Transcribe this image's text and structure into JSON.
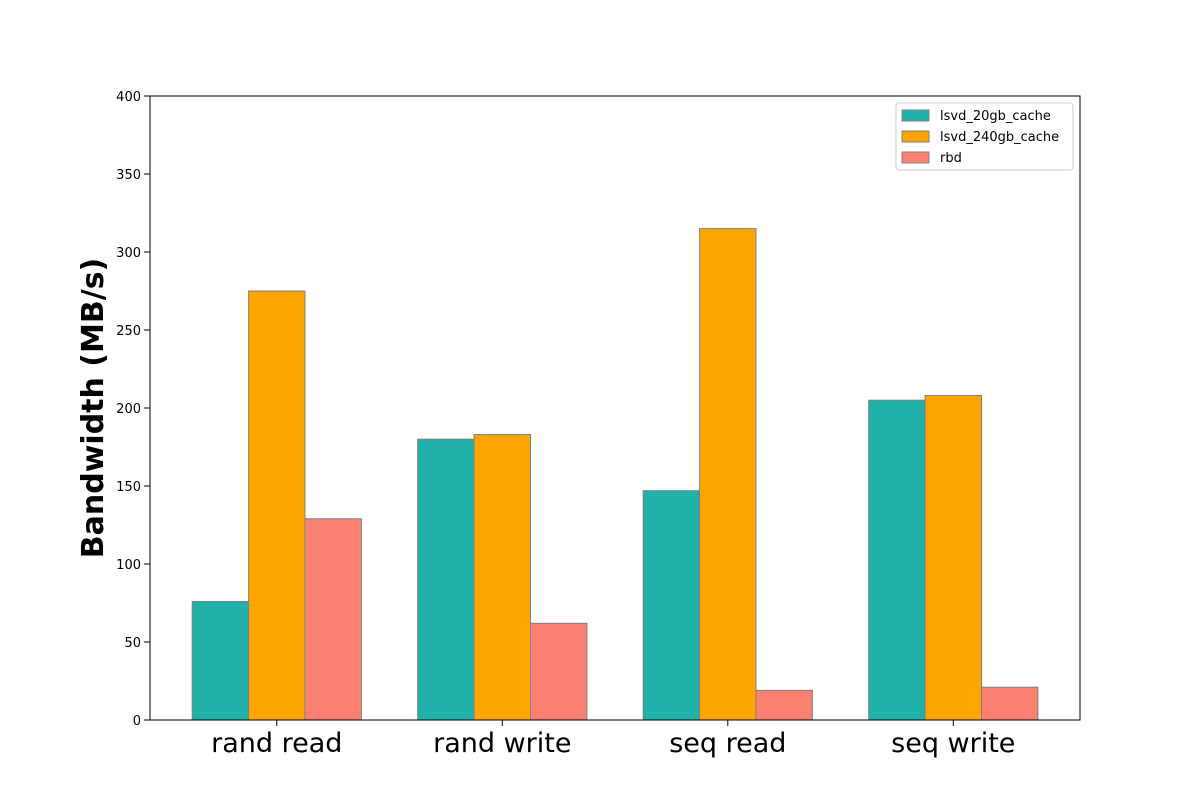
{
  "chart_data": {
    "type": "bar",
    "title": "",
    "xlabel": "",
    "ylabel": "Bandwidth (MB/s)",
    "categories": [
      "rand read",
      "rand write",
      "seq read",
      "seq write"
    ],
    "ylim": [
      0,
      400
    ],
    "yticks": [
      0,
      50,
      100,
      150,
      200,
      250,
      300,
      350,
      400
    ],
    "grid": false,
    "legend_position": "top-right",
    "series": [
      {
        "name": "lsvd_20gb_cache",
        "color": "#20b2aa",
        "values": [
          76,
          180,
          147,
          205
        ]
      },
      {
        "name": "lsvd_240gb_cache",
        "color": "#ffa500",
        "values": [
          275,
          183,
          315,
          208
        ]
      },
      {
        "name": "rbd",
        "color": "#fa8072",
        "values": [
          129,
          62,
          19,
          21
        ]
      }
    ]
  }
}
